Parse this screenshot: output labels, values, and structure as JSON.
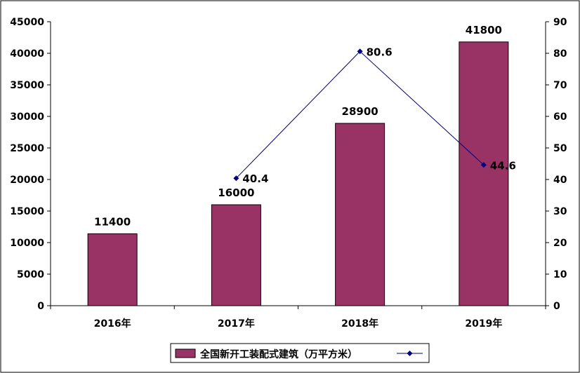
{
  "chart_data": {
    "type": "bar",
    "categories": [
      "2016年",
      "2017年",
      "2018年",
      "2019年"
    ],
    "series": [
      {
        "name": "全国新开工装配式建筑（万平方米）",
        "type": "bar",
        "axis": "left",
        "values": [
          11400,
          16000,
          28900,
          41800
        ],
        "color": "#993366"
      },
      {
        "type": "line",
        "axis": "right",
        "values": [
          null,
          40.4,
          80.6,
          44.6
        ],
        "color": "#000080"
      }
    ],
    "y_left": {
      "min": 0,
      "max": 45000,
      "step": 5000
    },
    "y_right": {
      "min": 0,
      "max": 90,
      "step": 10
    },
    "grid": false,
    "legend_position": "bottom"
  }
}
